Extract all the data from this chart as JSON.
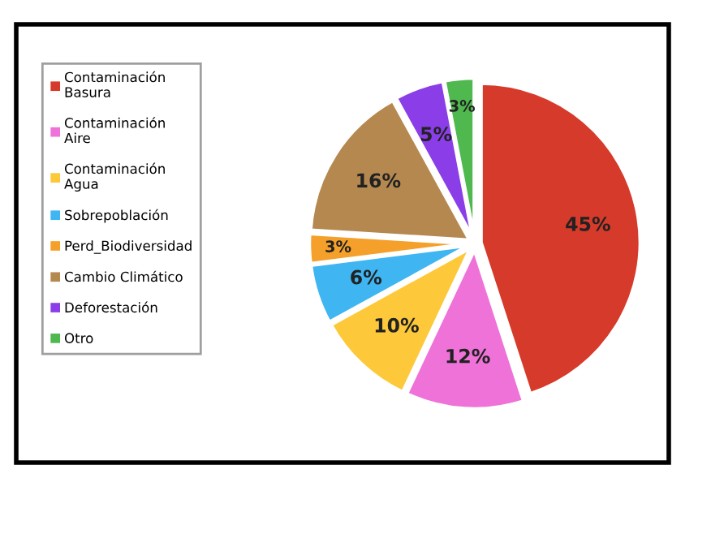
{
  "chart_data": {
    "type": "pie",
    "categories": [
      "Contaminación\nBasura",
      "Contaminación\nAire",
      "Contaminación\nAgua",
      "Sobrepoblación",
      "Perd_Biodiversidad",
      "Cambio Climático",
      "Deforestación",
      "Otro"
    ],
    "values": [
      45,
      12,
      10,
      6,
      3,
      16,
      5,
      3
    ],
    "value_labels": [
      "45%",
      "12%",
      "10%",
      "6%",
      "3%",
      "16%",
      "5%",
      "3%"
    ],
    "colors": [
      "#d63a2a",
      "#ee72d8",
      "#fdc93a",
      "#3fb6f2",
      "#f5a02a",
      "#b5884f",
      "#8b3ee8",
      "#4fb84f"
    ],
    "legend": "left"
  }
}
